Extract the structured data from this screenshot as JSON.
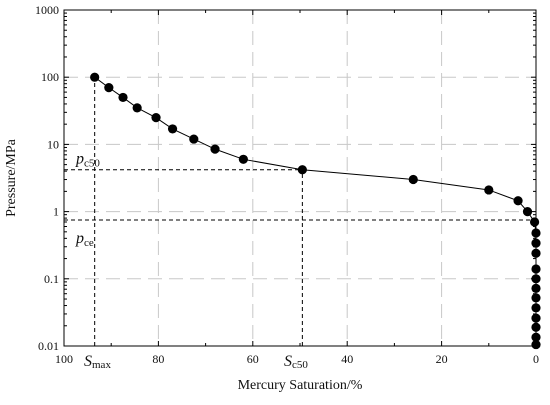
{
  "chart_data": {
    "type": "scatter",
    "xlabel": "Mercury Saturation/%",
    "ylabel": "Pressure/MPa",
    "x_reversed": true,
    "xlim": [
      100,
      0
    ],
    "ylim": [
      0.01,
      1000
    ],
    "y_scale": "log",
    "grid": true,
    "x_ticks": [
      "100",
      "80",
      "60",
      "40",
      "20",
      "0"
    ],
    "y_ticks": [
      "0.01",
      "0.1",
      "1",
      "10",
      "100",
      "1000"
    ],
    "series": [
      {
        "points": [
          {
            "x": 93.5,
            "y": 100
          },
          {
            "x": 90.5,
            "y": 70
          },
          {
            "x": 87.5,
            "y": 50
          },
          {
            "x": 84.5,
            "y": 35
          },
          {
            "x": 80.5,
            "y": 25
          },
          {
            "x": 77.0,
            "y": 17
          },
          {
            "x": 72.5,
            "y": 12
          },
          {
            "x": 68.0,
            "y": 8.5
          },
          {
            "x": 62.0,
            "y": 6.0
          },
          {
            "x": 49.5,
            "y": 4.2
          },
          {
            "x": 26.0,
            "y": 3.0
          },
          {
            "x": 10.0,
            "y": 2.1
          },
          {
            "x": 3.8,
            "y": 1.45
          },
          {
            "x": 1.8,
            "y": 1.0
          },
          {
            "x": 0.3,
            "y": 0.7
          },
          {
            "x": 0,
            "y": 0.48
          },
          {
            "x": 0,
            "y": 0.34
          },
          {
            "x": 0,
            "y": 0.24
          },
          {
            "x": 0,
            "y": 0.14
          },
          {
            "x": 0,
            "y": 0.1
          },
          {
            "x": 0,
            "y": 0.072
          },
          {
            "x": 0,
            "y": 0.052
          },
          {
            "x": 0,
            "y": 0.037
          },
          {
            "x": 0,
            "y": 0.026
          },
          {
            "x": 0,
            "y": 0.019
          },
          {
            "x": 0,
            "y": 0.0135
          },
          {
            "x": 0,
            "y": 0.0105
          }
        ]
      }
    ],
    "reference_lines": [
      {
        "orientation": "horizontal",
        "y": 4.2,
        "x_from": 100,
        "x_to": 49.5
      },
      {
        "orientation": "vertical",
        "x": 49.5,
        "y_from": 0.01,
        "y_to": 4.2
      },
      {
        "orientation": "horizontal",
        "y": 0.75,
        "x_from": 100,
        "x_to": 0
      },
      {
        "orientation": "vertical",
        "x": 93.5,
        "y_from": 0.01,
        "y_to": 100
      }
    ],
    "annotations": {
      "pc50": {
        "main": "p",
        "sub": "c50"
      },
      "pce": {
        "main": "p",
        "sub": "ce"
      },
      "smax": {
        "main": "S",
        "sub": "max"
      },
      "sc50": {
        "main": "S",
        "sub": "c50"
      }
    }
  }
}
